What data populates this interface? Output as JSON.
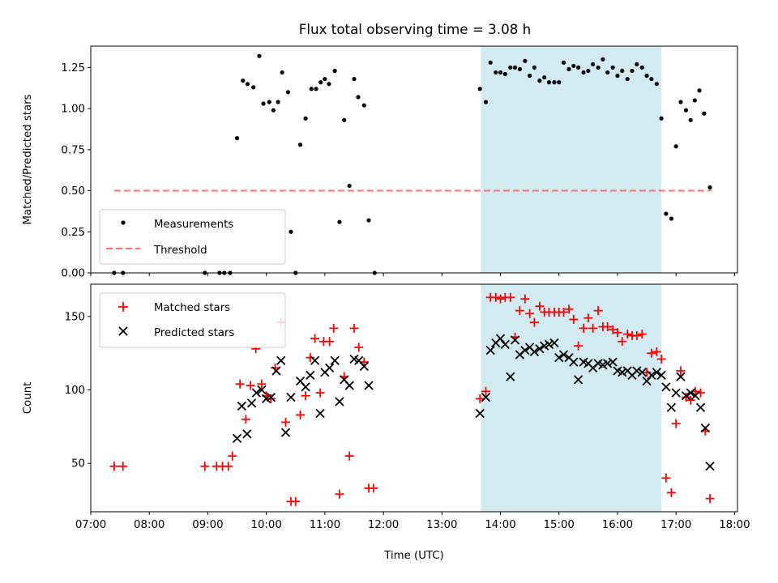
{
  "title": "Flux total observing time = 3.08 h",
  "colors": {
    "shade": "#add8e6",
    "threshold": "#ff7070",
    "matched": "#ff0000",
    "predicted": "#000000",
    "measurements": "#000000"
  },
  "chart_data": [
    {
      "type": "scatter",
      "ylabel": "Matched/Predicted stars",
      "xlim": [
        7.0,
        18.05
      ],
      "ylim": [
        0.0,
        1.38
      ],
      "yticks": [
        0.0,
        0.25,
        0.5,
        0.75,
        1.0,
        1.25
      ],
      "ytick_labels": [
        "0.00",
        "0.25",
        "0.50",
        "0.75",
        "1.00",
        "1.25"
      ],
      "shaded_region": [
        13.67,
        16.75
      ],
      "legend": {
        "position": "lower-left",
        "entries": [
          "Measurements",
          "Threshold"
        ]
      },
      "threshold": {
        "name": "Threshold",
        "y": 0.5,
        "x": [
          7.4,
          17.6
        ]
      },
      "series": [
        {
          "name": "Measurements",
          "marker": "dot",
          "points": [
            [
              7.4,
              0.0
            ],
            [
              7.55,
              0.0
            ],
            [
              8.95,
              0.0
            ],
            [
              9.2,
              0.0
            ],
            [
              9.28,
              0.0
            ],
            [
              9.38,
              0.0
            ],
            [
              9.5,
              0.82
            ],
            [
              9.6,
              1.17
            ],
            [
              9.68,
              1.15
            ],
            [
              9.78,
              1.13
            ],
            [
              9.88,
              1.32
            ],
            [
              9.95,
              1.03
            ],
            [
              10.05,
              1.04
            ],
            [
              10.12,
              0.99
            ],
            [
              10.2,
              1.04
            ],
            [
              10.27,
              1.22
            ],
            [
              10.37,
              1.1
            ],
            [
              10.42,
              0.25
            ],
            [
              10.5,
              0.0
            ],
            [
              10.58,
              0.78
            ],
            [
              10.67,
              0.94
            ],
            [
              10.77,
              1.12
            ],
            [
              10.85,
              1.12
            ],
            [
              10.93,
              1.16
            ],
            [
              11.0,
              1.18
            ],
            [
              11.07,
              1.15
            ],
            [
              11.17,
              1.23
            ],
            [
              11.25,
              0.31
            ],
            [
              11.33,
              0.93
            ],
            [
              11.42,
              0.53
            ],
            [
              11.5,
              1.18
            ],
            [
              11.57,
              1.07
            ],
            [
              11.67,
              1.02
            ],
            [
              11.75,
              0.32
            ],
            [
              11.85,
              0.0
            ],
            [
              13.65,
              1.12
            ],
            [
              13.75,
              1.04
            ],
            [
              13.83,
              1.28
            ],
            [
              13.92,
              1.22
            ],
            [
              14.0,
              1.22
            ],
            [
              14.08,
              1.21
            ],
            [
              14.17,
              1.25
            ],
            [
              14.25,
              1.25
            ],
            [
              14.33,
              1.24
            ],
            [
              14.42,
              1.29
            ],
            [
              14.5,
              1.2
            ],
            [
              14.58,
              1.25
            ],
            [
              14.67,
              1.17
            ],
            [
              14.75,
              1.19
            ],
            [
              14.83,
              1.16
            ],
            [
              14.92,
              1.16
            ],
            [
              15.0,
              1.16
            ],
            [
              15.08,
              1.28
            ],
            [
              15.17,
              1.24
            ],
            [
              15.25,
              1.26
            ],
            [
              15.33,
              1.25
            ],
            [
              15.42,
              1.22
            ],
            [
              15.5,
              1.23
            ],
            [
              15.58,
              1.27
            ],
            [
              15.67,
              1.25
            ],
            [
              15.75,
              1.3
            ],
            [
              15.83,
              1.22
            ],
            [
              15.92,
              1.25
            ],
            [
              16.0,
              1.2
            ],
            [
              16.08,
              1.23
            ],
            [
              16.17,
              1.18
            ],
            [
              16.25,
              1.23
            ],
            [
              16.33,
              1.27
            ],
            [
              16.42,
              1.25
            ],
            [
              16.5,
              1.2
            ],
            [
              16.58,
              1.18
            ],
            [
              16.67,
              1.15
            ],
            [
              16.75,
              0.94
            ],
            [
              16.83,
              0.36
            ],
            [
              16.92,
              0.33
            ],
            [
              17.0,
              0.77
            ],
            [
              17.08,
              1.04
            ],
            [
              17.17,
              0.99
            ],
            [
              17.25,
              0.93
            ],
            [
              17.32,
              1.05
            ],
            [
              17.4,
              1.11
            ],
            [
              17.48,
              0.97
            ],
            [
              17.58,
              0.52
            ]
          ]
        }
      ]
    },
    {
      "type": "scatter",
      "xlabel": "Time (UTC)",
      "ylabel": "Count",
      "xlim": [
        7.0,
        18.05
      ],
      "ylim": [
        17,
        172
      ],
      "yticks": [
        50,
        100,
        150
      ],
      "ytick_labels": [
        "50",
        "100",
        "150"
      ],
      "xticks": [
        7,
        8,
        9,
        10,
        11,
        12,
        13,
        14,
        15,
        16,
        17,
        18
      ],
      "xtick_labels": [
        "07:00",
        "08:00",
        "09:00",
        "10:00",
        "11:00",
        "12:00",
        "13:00",
        "14:00",
        "15:00",
        "16:00",
        "17:00",
        "18:00"
      ],
      "shaded_region": [
        13.67,
        16.75
      ],
      "legend": {
        "position": "upper-left",
        "entries": [
          "Matched stars",
          "Predicted stars"
        ]
      },
      "series": [
        {
          "name": "Matched stars",
          "marker": "plus",
          "points": [
            [
              7.4,
              48
            ],
            [
              7.55,
              48
            ],
            [
              8.95,
              48
            ],
            [
              9.15,
              48
            ],
            [
              9.25,
              48
            ],
            [
              9.35,
              48
            ],
            [
              9.42,
              55
            ],
            [
              9.55,
              104
            ],
            [
              9.65,
              80
            ],
            [
              9.73,
              103
            ],
            [
              9.82,
              128
            ],
            [
              9.92,
              104
            ],
            [
              10.0,
              96
            ],
            [
              10.08,
              94
            ],
            [
              10.15,
              115
            ],
            [
              10.25,
              146
            ],
            [
              10.33,
              78
            ],
            [
              10.42,
              24
            ],
            [
              10.5,
              24
            ],
            [
              10.58,
              83
            ],
            [
              10.67,
              96
            ],
            [
              10.75,
              122
            ],
            [
              10.83,
              135
            ],
            [
              10.92,
              98
            ],
            [
              10.98,
              133
            ],
            [
              11.08,
              133
            ],
            [
              11.15,
              142
            ],
            [
              11.25,
              29
            ],
            [
              11.33,
              109
            ],
            [
              11.42,
              55
            ],
            [
              11.5,
              142
            ],
            [
              11.58,
              129
            ],
            [
              11.67,
              119
            ],
            [
              11.75,
              33
            ],
            [
              11.83,
              33
            ],
            [
              13.65,
              94
            ],
            [
              13.75,
              99
            ],
            [
              13.83,
              163
            ],
            [
              13.92,
              163
            ],
            [
              14.0,
              162
            ],
            [
              14.08,
              163
            ],
            [
              14.17,
              163
            ],
            [
              14.25,
              136
            ],
            [
              14.33,
              154
            ],
            [
              14.42,
              162
            ],
            [
              14.5,
              152
            ],
            [
              14.58,
              146
            ],
            [
              14.67,
              157
            ],
            [
              14.75,
              153
            ],
            [
              14.83,
              153
            ],
            [
              14.92,
              153
            ],
            [
              15.0,
              153
            ],
            [
              15.08,
              153
            ],
            [
              15.17,
              155
            ],
            [
              15.25,
              148
            ],
            [
              15.33,
              130
            ],
            [
              15.42,
              142
            ],
            [
              15.5,
              149
            ],
            [
              15.58,
              142
            ],
            [
              15.67,
              154
            ],
            [
              15.75,
              143
            ],
            [
              15.83,
              143
            ],
            [
              15.92,
              141
            ],
            [
              16.0,
              139
            ],
            [
              16.08,
              133
            ],
            [
              16.17,
              138
            ],
            [
              16.25,
              137
            ],
            [
              16.33,
              137
            ],
            [
              16.42,
              138
            ],
            [
              16.5,
              112
            ],
            [
              16.58,
              125
            ],
            [
              16.67,
              126
            ],
            [
              16.75,
              121
            ],
            [
              16.83,
              40
            ],
            [
              16.92,
              30
            ],
            [
              17.0,
              77
            ],
            [
              17.08,
              113
            ],
            [
              17.17,
              95
            ],
            [
              17.25,
              93
            ],
            [
              17.33,
              99
            ],
            [
              17.42,
              98
            ],
            [
              17.5,
              72
            ],
            [
              17.58,
              26
            ]
          ]
        },
        {
          "name": "Predicted stars",
          "marker": "x",
          "points": [
            [
              9.5,
              67
            ],
            [
              9.58,
              89
            ],
            [
              9.67,
              70
            ],
            [
              9.75,
              91
            ],
            [
              9.83,
              98
            ],
            [
              9.92,
              100
            ],
            [
              10.0,
              94
            ],
            [
              10.08,
              95
            ],
            [
              10.17,
              113
            ],
            [
              10.25,
              120
            ],
            [
              10.33,
              71
            ],
            [
              10.42,
              95
            ],
            [
              10.58,
              106
            ],
            [
              10.67,
              102
            ],
            [
              10.75,
              110
            ],
            [
              10.83,
              120
            ],
            [
              10.92,
              84
            ],
            [
              11.0,
              112
            ],
            [
              11.08,
              115
            ],
            [
              11.17,
              120
            ],
            [
              11.25,
              92
            ],
            [
              11.33,
              107
            ],
            [
              11.42,
              103
            ],
            [
              11.5,
              121
            ],
            [
              11.58,
              120
            ],
            [
              11.67,
              116
            ],
            [
              11.75,
              103
            ],
            [
              13.65,
              84
            ],
            [
              13.75,
              95
            ],
            [
              13.83,
              127
            ],
            [
              13.92,
              132
            ],
            [
              14.0,
              135
            ],
            [
              14.08,
              131
            ],
            [
              14.17,
              109
            ],
            [
              14.25,
              134
            ],
            [
              14.33,
              124
            ],
            [
              14.42,
              127
            ],
            [
              14.5,
              129
            ],
            [
              14.58,
              126
            ],
            [
              14.67,
              128
            ],
            [
              14.75,
              130
            ],
            [
              14.83,
              131
            ],
            [
              14.92,
              132
            ],
            [
              15.0,
              122
            ],
            [
              15.08,
              124
            ],
            [
              15.17,
              122
            ],
            [
              15.25,
              119
            ],
            [
              15.33,
              107
            ],
            [
              15.42,
              119
            ],
            [
              15.5,
              118
            ],
            [
              15.58,
              115
            ],
            [
              15.67,
              118
            ],
            [
              15.75,
              117
            ],
            [
              15.83,
              118
            ],
            [
              15.92,
              119
            ],
            [
              16.0,
              113
            ],
            [
              16.08,
              112
            ],
            [
              16.17,
              113
            ],
            [
              16.25,
              110
            ],
            [
              16.33,
              113
            ],
            [
              16.42,
              112
            ],
            [
              16.5,
              106
            ],
            [
              16.58,
              110
            ],
            [
              16.67,
              112
            ],
            [
              16.75,
              110
            ],
            [
              16.83,
              102
            ],
            [
              16.92,
              88
            ],
            [
              17.0,
              98
            ],
            [
              17.08,
              109
            ],
            [
              17.17,
              96
            ],
            [
              17.25,
              98
            ],
            [
              17.33,
              96
            ],
            [
              17.42,
              88
            ],
            [
              17.5,
              74
            ],
            [
              17.58,
              48
            ]
          ]
        }
      ]
    }
  ]
}
